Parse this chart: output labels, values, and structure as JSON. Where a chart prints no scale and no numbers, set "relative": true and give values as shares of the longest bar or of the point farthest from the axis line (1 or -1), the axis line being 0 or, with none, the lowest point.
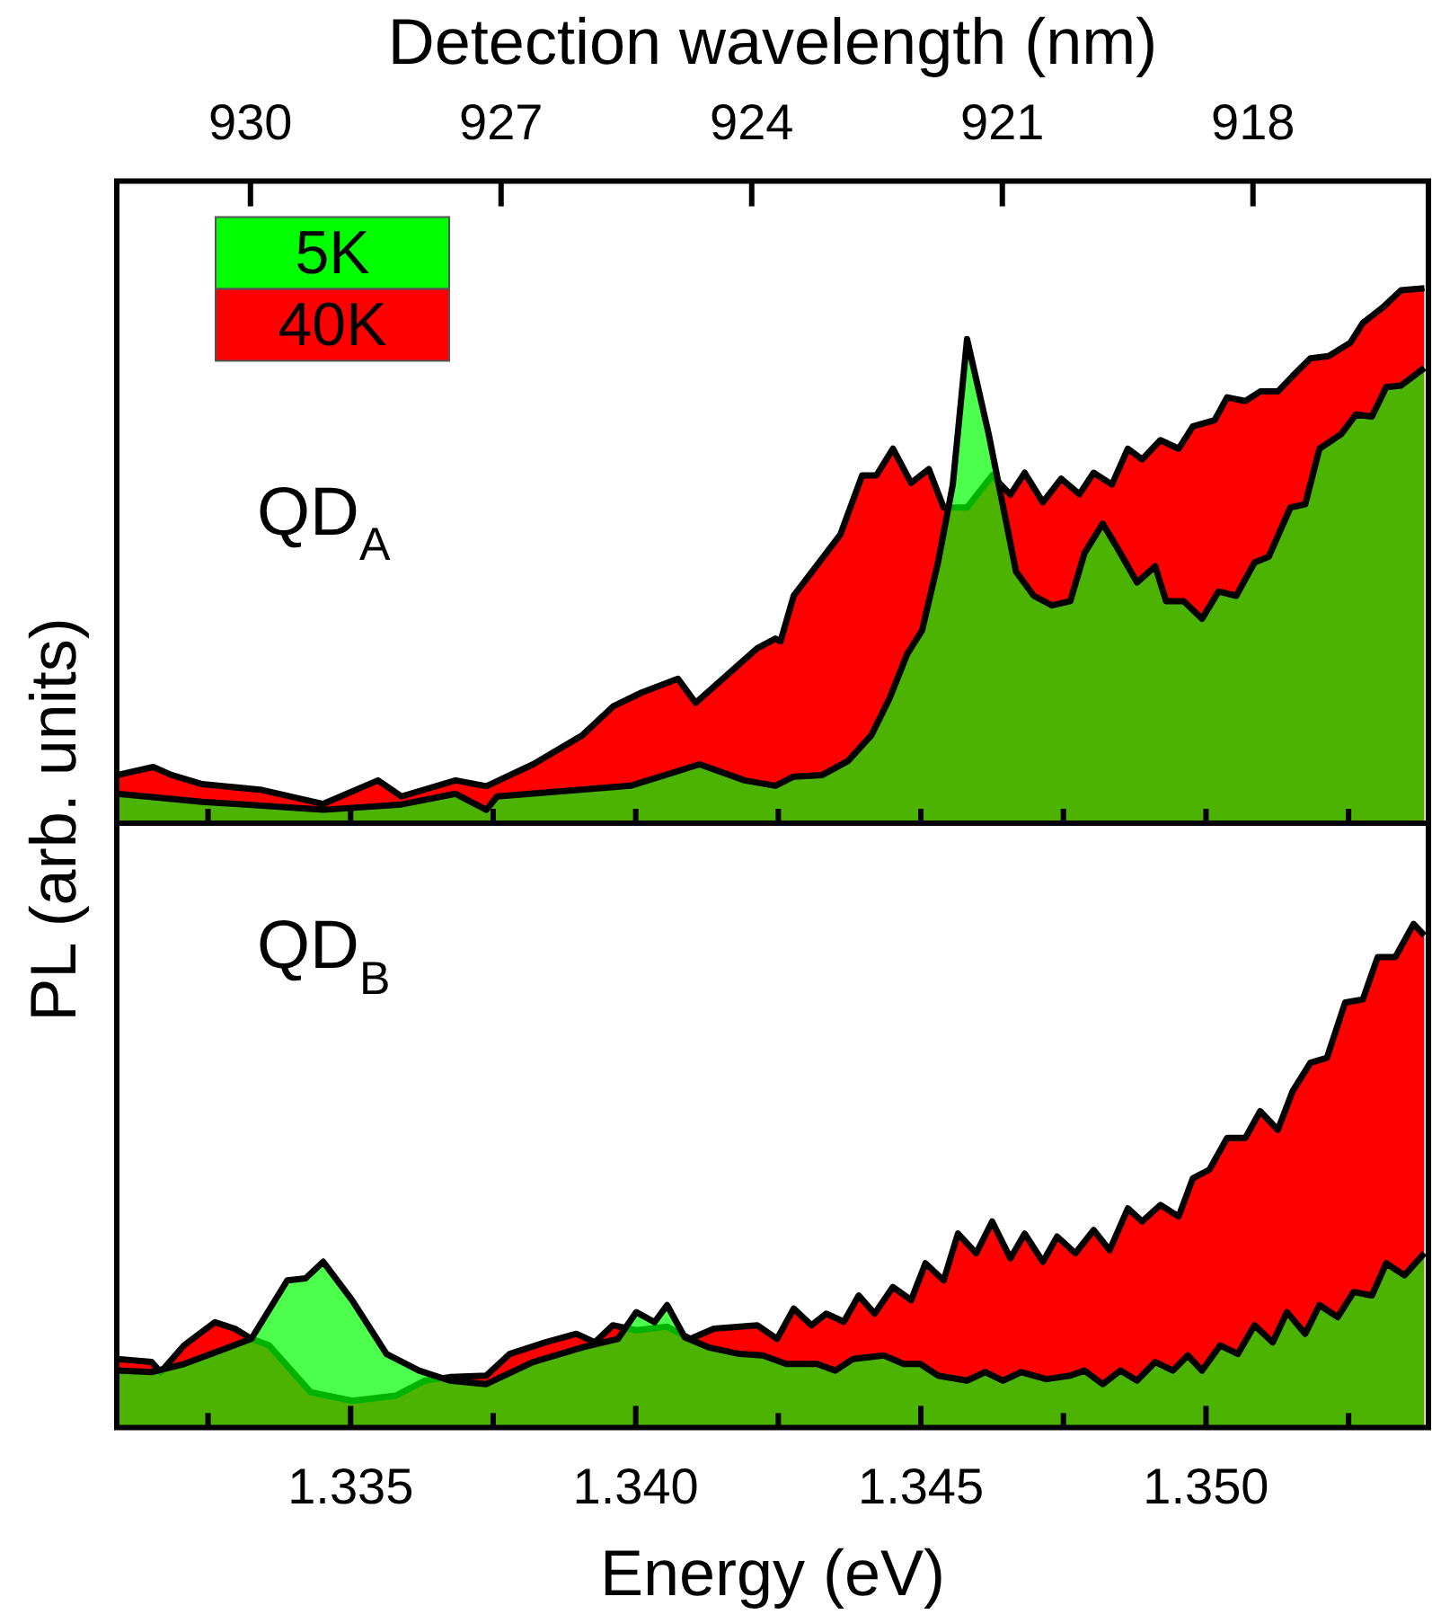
{
  "chart_data": [
    {
      "type": "area",
      "relative": true,
      "ylabel": "PL (arb. units)",
      "x2label": "Detection wavelength (nm)",
      "legend": "top left",
      "annotations": [
        "QD$_{A}$"
      ],
      "tick_labels": false,
      "xlim": [
        1.3309,
        1.3539
      ],
      "xticks": [
        {
          "value": 1.3325,
          "label": null
        },
        {
          "value": 1.335,
          "label": null
        },
        {
          "value": 1.3375,
          "label": null
        },
        {
          "value": 1.34,
          "label": null
        },
        {
          "value": 1.3425,
          "label": null
        },
        {
          "value": 1.345,
          "label": null
        },
        {
          "value": 1.3475,
          "label": null
        },
        {
          "value": 1.35,
          "label": null
        },
        {
          "value": 1.3525,
          "label": null
        }
      ],
      "x2lim": [
        931.6,
        915.9
      ],
      "x2ticks": [
        930,
        927,
        924,
        921,
        918
      ],
      "series": [
        {
          "name": "5K",
          "color": "#00ff00",
          "x": [
            1.33091,
            1.3324,
            1.33452,
            1.33589,
            1.33684,
            1.33738,
            1.33757,
            1.33991,
            1.34112,
            1.34191,
            1.34245,
            1.34277,
            1.34327,
            1.34372,
            1.34413,
            1.34445,
            1.34476,
            1.34502,
            1.3453,
            1.34556,
            1.34581,
            1.34619,
            1.34667,
            1.34698,
            1.3473,
            1.34762,
            1.34787,
            1.34819,
            1.34847,
            1.34879,
            1.34911,
            1.3493,
            1.34961,
            1.34993,
            1.35022,
            1.35053,
            1.35085,
            1.3511,
            1.35148,
            1.35174,
            1.35199,
            1.35237,
            1.35263,
            1.35291,
            1.35316,
            1.35342,
            1.35383
          ],
          "values": [
            0.055,
            0.04,
            0.025,
            0.035,
            0.055,
            0.025,
            0.05,
            0.07,
            0.11,
            0.08,
            0.07,
            0.087,
            0.09,
            0.116,
            0.164,
            0.233,
            0.316,
            0.36,
            0.487,
            0.633,
            0.905,
            0.727,
            0.47,
            0.425,
            0.407,
            0.415,
            0.505,
            0.56,
            0.51,
            0.45,
            0.48,
            0.415,
            0.415,
            0.382,
            0.433,
            0.425,
            0.487,
            0.498,
            0.59,
            0.596,
            0.7,
            0.727,
            0.764,
            0.76,
            0.815,
            0.818,
            0.851
          ]
        },
        {
          "name": "40K",
          "color": "#ff0000",
          "x": [
            1.33091,
            1.33154,
            1.33186,
            1.3324,
            1.33345,
            1.33452,
            1.33548,
            1.33589,
            1.33684,
            1.33738,
            1.3382,
            1.33906,
            1.3396,
            1.3401,
            1.34074,
            1.34105,
            1.34137,
            1.34213,
            1.34245,
            1.34254,
            1.34277,
            1.34359,
            1.34397,
            1.34422,
            1.34451,
            1.34483,
            1.34514,
            1.3454,
            1.34581,
            1.34625,
            1.34657,
            1.34682,
            1.34714,
            1.34746,
            1.34778,
            1.34803,
            1.34835,
            1.34863,
            1.34888,
            1.3492,
            1.34952,
            1.34977,
            1.35015,
            1.35037,
            1.35069,
            1.35095,
            1.35126,
            1.35152,
            1.35183,
            1.35215,
            1.35253,
            1.35275,
            1.3531,
            1.35342,
            1.35383
          ],
          "values": [
            0.09,
            0.105,
            0.09,
            0.073,
            0.062,
            0.036,
            0.08,
            0.05,
            0.08,
            0.069,
            0.11,
            0.164,
            0.218,
            0.244,
            0.27,
            0.225,
            0.255,
            0.327,
            0.345,
            0.34,
            0.425,
            0.54,
            0.65,
            0.65,
            0.7,
            0.636,
            0.662,
            0.59,
            0.59,
            0.65,
            0.614,
            0.655,
            0.6,
            0.644,
            0.615,
            0.655,
            0.633,
            0.7,
            0.68,
            0.716,
            0.7,
            0.742,
            0.753,
            0.796,
            0.789,
            0.807,
            0.807,
            0.836,
            0.869,
            0.873,
            0.898,
            0.935,
            0.964,
            0.996,
            1.0
          ]
        }
      ]
    },
    {
      "type": "area",
      "relative": true,
      "xlabel": "Energy (eV)",
      "annotations": [
        "QD$_{B}$"
      ],
      "xlim": [
        1.3309,
        1.3539
      ],
      "xticks": [
        {
          "value": 1.3325,
          "label": null
        },
        1.335,
        {
          "value": 1.3375,
          "label": null
        },
        {
          "value": 1.34,
          "label": "1.340"
        },
        {
          "value": 1.3425,
          "label": null
        },
        1.345,
        {
          "value": 1.3475,
          "label": null
        },
        {
          "value": 1.35,
          "label": "1.350"
        },
        {
          "value": 1.3525,
          "label": null
        }
      ],
      "series": [
        {
          "color": "#00ff00",
          "x": [
            1.33091,
            1.33151,
            1.33208,
            1.33326,
            1.33389,
            1.33421,
            1.33452,
            1.33503,
            1.33563,
            1.3362,
            1.33674,
            1.33738,
            1.3382,
            1.33906,
            1.33969,
            1.34001,
            1.34033,
            1.34055,
            1.34086,
            1.34128,
            1.34182,
            1.34223,
            1.34264,
            1.34318,
            1.3435,
            1.34381,
            1.34435,
            1.3447,
            1.34499,
            1.3453,
            1.34581,
            1.34613,
            1.34644,
            1.34676,
            1.3472,
            1.34762,
            1.34787,
            1.34819,
            1.3485,
            1.34879,
            1.34911,
            1.34942,
            1.34968,
            1.34993,
            1.35025,
            1.35056,
            1.35085,
            1.35117,
            1.35142,
            1.35174,
            1.35199,
            1.35231,
            1.35259,
            1.35291,
            1.35316,
            1.35348,
            1.35383
          ],
          "values": [
            0.113,
            0.11,
            0.126,
            0.176,
            0.292,
            0.296,
            0.329,
            0.252,
            0.146,
            0.113,
            0.093,
            0.086,
            0.13,
            0.159,
            0.176,
            0.229,
            0.209,
            0.243,
            0.179,
            0.159,
            0.146,
            0.143,
            0.126,
            0.126,
            0.113,
            0.136,
            0.143,
            0.126,
            0.126,
            0.103,
            0.093,
            0.11,
            0.093,
            0.11,
            0.096,
            0.103,
            0.113,
            0.086,
            0.113,
            0.093,
            0.13,
            0.113,
            0.143,
            0.113,
            0.163,
            0.146,
            0.203,
            0.169,
            0.229,
            0.186,
            0.243,
            0.219,
            0.269,
            0.262,
            0.326,
            0.302,
            0.346
          ]
        },
        {
          "color": "#ff0000",
          "x": [
            1.33091,
            1.33151,
            1.33167,
            1.33208,
            1.33262,
            1.33297,
            1.33326,
            1.33357,
            1.3343,
            1.33503,
            1.33579,
            1.3363,
            1.33674,
            1.33738,
            1.33779,
            1.33842,
            1.33896,
            1.33928,
            1.3396,
            1.34001,
            1.34055,
            1.34096,
            1.34137,
            1.34213,
            1.34248,
            1.34277,
            1.34308,
            1.34334,
            1.34365,
            1.34391,
            1.34419,
            1.34451,
            1.34483,
            1.34508,
            1.3454,
            1.34565,
            1.34597,
            1.34625,
            1.34657,
            1.34682,
            1.34714,
            1.34739,
            1.34771,
            1.34803,
            1.34831,
            1.34863,
            1.34888,
            1.3492,
            1.34952,
            1.34977,
            1.35006,
            1.35037,
            1.35069,
            1.35095,
            1.35126,
            1.35152,
            1.35183,
            1.35212,
            1.35244,
            1.35275,
            1.35301,
            1.35332,
            1.35364,
            1.35383
          ],
          "values": [
            0.136,
            0.13,
            0.11,
            0.163,
            0.209,
            0.196,
            0.176,
            0.163,
            0.07,
            0.053,
            0.063,
            0.093,
            0.1,
            0.103,
            0.146,
            0.169,
            0.186,
            0.169,
            0.203,
            0.193,
            0.2,
            0.176,
            0.196,
            0.203,
            0.176,
            0.236,
            0.203,
            0.226,
            0.21,
            0.262,
            0.226,
            0.279,
            0.253,
            0.326,
            0.292,
            0.385,
            0.346,
            0.409,
            0.336,
            0.385,
            0.329,
            0.379,
            0.346,
            0.392,
            0.352,
            0.435,
            0.409,
            0.442,
            0.419,
            0.495,
            0.512,
            0.575,
            0.575,
            0.628,
            0.591,
            0.668,
            0.724,
            0.734,
            0.844,
            0.85,
            0.934,
            0.934,
            1.0,
            0.977
          ]
        }
      ]
    }
  ]
}
